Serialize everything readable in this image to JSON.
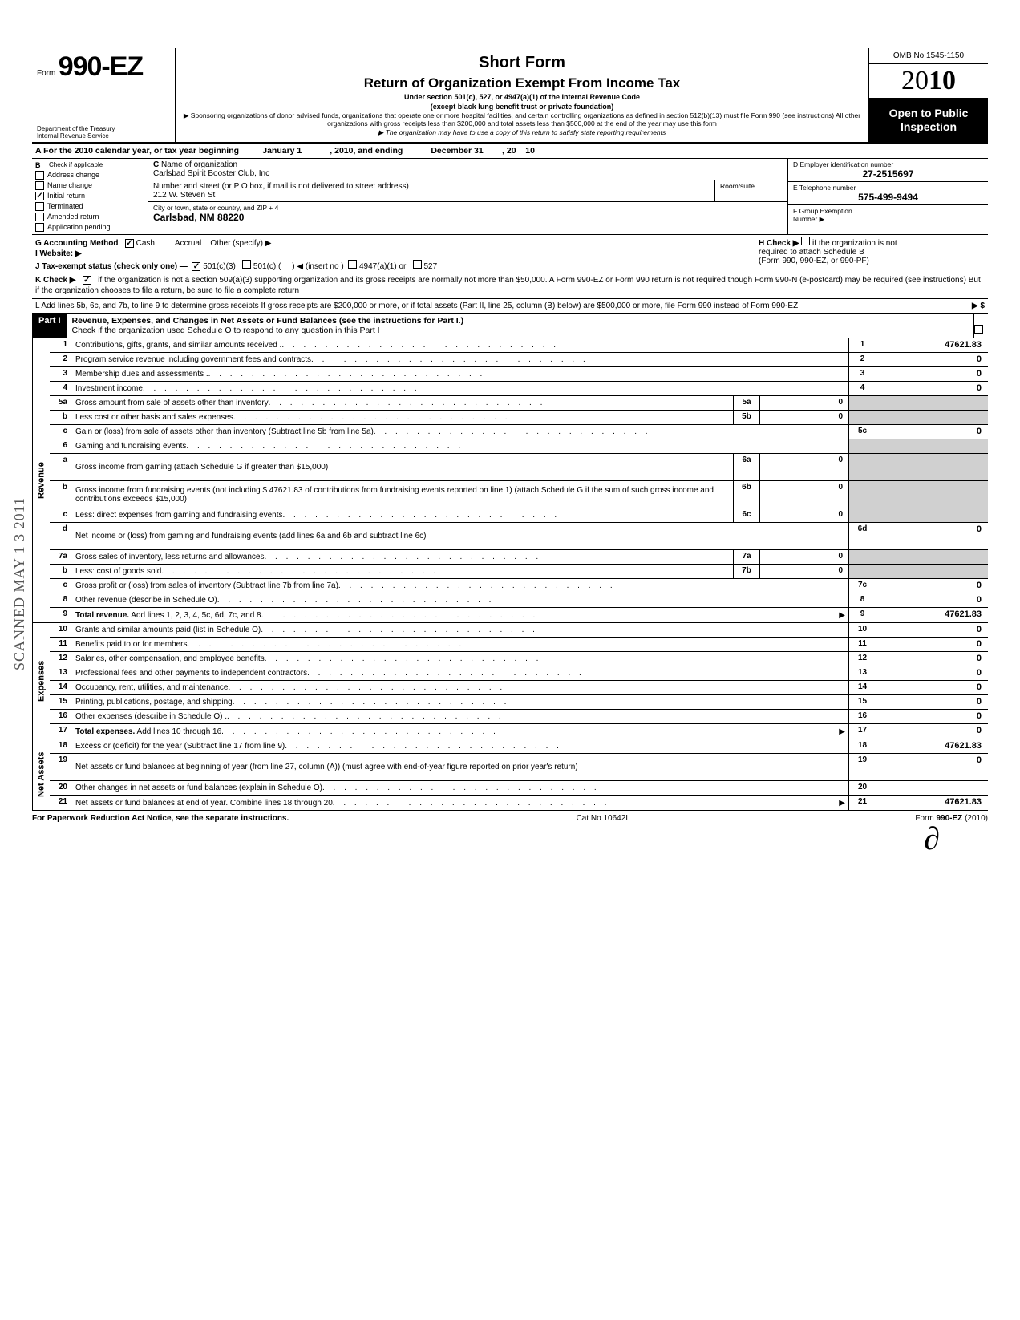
{
  "header": {
    "form_prefix": "Form",
    "form_number": "990-EZ",
    "title1": "Short Form",
    "title2": "Return of Organization Exempt From Income Tax",
    "under": "Under section 501(c), 527, or 4947(a)(1) of the Internal Revenue Code",
    "under2": "(except black lung benefit trust or private foundation)",
    "sponsor": "▶ Sponsoring organizations of donor advised funds, organizations that operate one or more hospital facilities, and certain controlling organizations as defined in section 512(b)(13) must file Form 990 (see instructions) All other organizations with gross receipts less than $200,000 and total assets less than $500,000 at the end of the year may use this form",
    "state_line": "▶ The organization may have to use a copy of this return to satisfy state reporting requirements",
    "dept1": "Department of the Treasury",
    "dept2": "Internal Revenue Service",
    "omb": "OMB No 1545-1150",
    "year_prefix": "20",
    "year_bold": "10",
    "open1": "Open to Public",
    "open2": "Inspection"
  },
  "section_a": {
    "text_a": "A  For the 2010 calendar year, or tax year beginning",
    "begin": "January 1",
    "mid": ", 2010, and ending",
    "end": "December 31",
    "yr_label": ", 20",
    "yr": "10"
  },
  "entity": {
    "b_label": "B",
    "b_text": "Check if applicable",
    "checks": [
      {
        "label": "Address change",
        "checked": false
      },
      {
        "label": "Name change",
        "checked": false
      },
      {
        "label": "Initial return",
        "checked": true
      },
      {
        "label": "Terminated",
        "checked": false
      },
      {
        "label": "Amended return",
        "checked": false
      },
      {
        "label": "Application pending",
        "checked": false
      }
    ],
    "c_label": "C",
    "c_text": "Name of organization",
    "org_name": "Carlsbad Spirit Booster Club, Inc",
    "addr_label": "Number and street (or P O  box, if mail is not delivered to street address)",
    "room_label": "Room/suite",
    "address": "212 W. Steven St",
    "city_label": "City or town, state or country, and ZIP + 4",
    "city": "Carlsbad, NM  88220",
    "d_label": "D Employer identification number",
    "ein": "27-2515697",
    "e_label": "E  Telephone number",
    "phone": "575-499-9494",
    "f_label": "F  Group Exemption",
    "f_label2": "Number  ▶"
  },
  "rows": {
    "g_label": "G  Accounting Method",
    "g_cash": "Cash",
    "g_accrual": "Accrual",
    "g_other": "Other (specify) ▶",
    "h_label": "H  Check ▶",
    "h_text": "if the organization is not",
    "h_text2": "required to attach Schedule B",
    "h_text3": "(Form 990, 990-EZ, or 990-PF)",
    "i_label": "I   Website: ▶",
    "j_label": "J  Tax-exempt status (check only one) —",
    "j_501c3": "501(c)(3)",
    "j_501c": "501(c) (",
    "j_insert": ")  ◀ (insert no )",
    "j_4947": "4947(a)(1) or",
    "j_527": "527",
    "k_label": "K  Check ▶",
    "k_text": "if the organization is not a section 509(a)(3) supporting organization and its gross receipts are normally not more than $50,000.  A Form 990-EZ or Form 990 return is not required though Form 990-N (e-postcard) may be required (see instructions)  But if the organization chooses to file a return, be sure to file a complete return",
    "l_text": "L  Add lines 5b, 6c, and 7b, to line 9 to determine gross receipts  If gross receipts are $200,000 or more, or if total assets (Part II, line  25, column (B) below) are $500,000 or more, file Form 990 instead of Form 990-EZ",
    "l_arrow": "▶  $"
  },
  "part1": {
    "label": "Part I",
    "title": "Revenue, Expenses, and Changes in Net Assets or Fund Balances (see the instructions for Part I.)",
    "sub": "Check if the organization used Schedule O to respond to any question in this Part I"
  },
  "revenue": [
    {
      "n": "1",
      "d": "Contributions, gifts, grants, and similar amounts received .",
      "nc": "1",
      "v": "47621.83"
    },
    {
      "n": "2",
      "d": "Program service revenue including government fees and contracts",
      "nc": "2",
      "v": "0"
    },
    {
      "n": "3",
      "d": "Membership dues and assessments .",
      "nc": "3",
      "v": "0"
    },
    {
      "n": "4",
      "d": "Investment income",
      "nc": "4",
      "v": "0"
    },
    {
      "n": "5a",
      "d": "Gross amount from sale of assets other than inventory",
      "mc": "5a",
      "mv": "0",
      "shaded": true
    },
    {
      "n": "b",
      "d": "Less  cost or other basis and sales expenses",
      "mc": "5b",
      "mv": "0",
      "shaded": true
    },
    {
      "n": "c",
      "d": "Gain or (loss) from sale of assets other than inventory (Subtract line 5b from line 5a)",
      "nc": "5c",
      "v": "0"
    },
    {
      "n": "6",
      "d": "Gaming and fundraising events",
      "shaded": true,
      "noval": true
    },
    {
      "n": "a",
      "d": "Gross income from gaming (attach Schedule G if greater than $15,000)",
      "mc": "6a",
      "mv": "0",
      "shaded": true,
      "multiline": true
    },
    {
      "n": "b",
      "d": "Gross income from fundraising events (not including $            47621.83 of contributions from fundraising events reported on line 1) (attach Schedule G if the sum of such gross income and contributions exceeds $15,000)",
      "mc": "6b",
      "mv": "0",
      "shaded": true,
      "multiline": true
    },
    {
      "n": "c",
      "d": "Less: direct expenses from gaming and fundraising events",
      "mc": "6c",
      "mv": "0",
      "shaded": true
    },
    {
      "n": "d",
      "d": "Net income or (loss) from gaming and fundraising events (add lines 6a and 6b and subtract line 6c)",
      "nc": "6d",
      "v": "0",
      "multiline": true
    },
    {
      "n": "7a",
      "d": "Gross sales of inventory, less returns and allowances",
      "mc": "7a",
      "mv": "0",
      "shaded": true
    },
    {
      "n": "b",
      "d": "Less: cost of goods sold",
      "mc": "7b",
      "mv": "0",
      "shaded": true
    },
    {
      "n": "c",
      "d": "Gross profit or (loss) from sales of inventory (Subtract line 7b from line 7a)",
      "nc": "7c",
      "v": "0"
    },
    {
      "n": "8",
      "d": "Other revenue (describe in Schedule O)",
      "nc": "8",
      "v": "0"
    },
    {
      "n": "9",
      "d": "Total revenue. Add lines 1, 2, 3, 4, 5c, 6d, 7c, and 8",
      "nc": "9",
      "v": "47621.83",
      "arrow": true,
      "bold": true
    }
  ],
  "expenses": [
    {
      "n": "10",
      "d": "Grants and similar amounts paid (list in Schedule O)",
      "nc": "10",
      "v": "0"
    },
    {
      "n": "11",
      "d": "Benefits paid to or for members",
      "nc": "11",
      "v": "0"
    },
    {
      "n": "12",
      "d": "Salaries, other compensation, and employee benefits",
      "nc": "12",
      "v": "0"
    },
    {
      "n": "13",
      "d": "Professional fees and other payments to independent contractors",
      "nc": "13",
      "v": "0"
    },
    {
      "n": "14",
      "d": "Occupancy, rent, utilities, and maintenance",
      "nc": "14",
      "v": "0"
    },
    {
      "n": "15",
      "d": "Printing, publications, postage, and shipping",
      "nc": "15",
      "v": "0"
    },
    {
      "n": "16",
      "d": "Other expenses (describe in Schedule O)  .",
      "nc": "16",
      "v": "0"
    },
    {
      "n": "17",
      "d": "Total expenses. Add lines 10 through 16",
      "nc": "17",
      "v": "0",
      "arrow": true,
      "bold": true
    }
  ],
  "netassets": [
    {
      "n": "18",
      "d": "Excess or (deficit) for the year (Subtract line 17 from line 9)",
      "nc": "18",
      "v": "47621.83"
    },
    {
      "n": "19",
      "d": "Net assets or fund balances at beginning of year (from line 27, column (A)) (must agree with end-of-year figure reported on prior year's return)",
      "nc": "19",
      "v": "0",
      "multiline": true
    },
    {
      "n": "20",
      "d": "Other changes in net assets or fund balances (explain in Schedule O)",
      "nc": "20",
      "v": ""
    },
    {
      "n": "21",
      "d": "Net assets or fund balances at end of year. Combine lines 18 through 20",
      "nc": "21",
      "v": "47621.83",
      "arrow": true
    }
  ],
  "footer": {
    "left": "For Paperwork Reduction Act Notice, see the separate instructions.",
    "mid": "Cat No 10642I",
    "right": "Form 990-EZ (2010)"
  },
  "stamp": "SCANNED MAY 1 3 2011",
  "side_labels": {
    "revenue": "Revenue",
    "expenses": "Expenses",
    "netassets": "Net Assets"
  }
}
